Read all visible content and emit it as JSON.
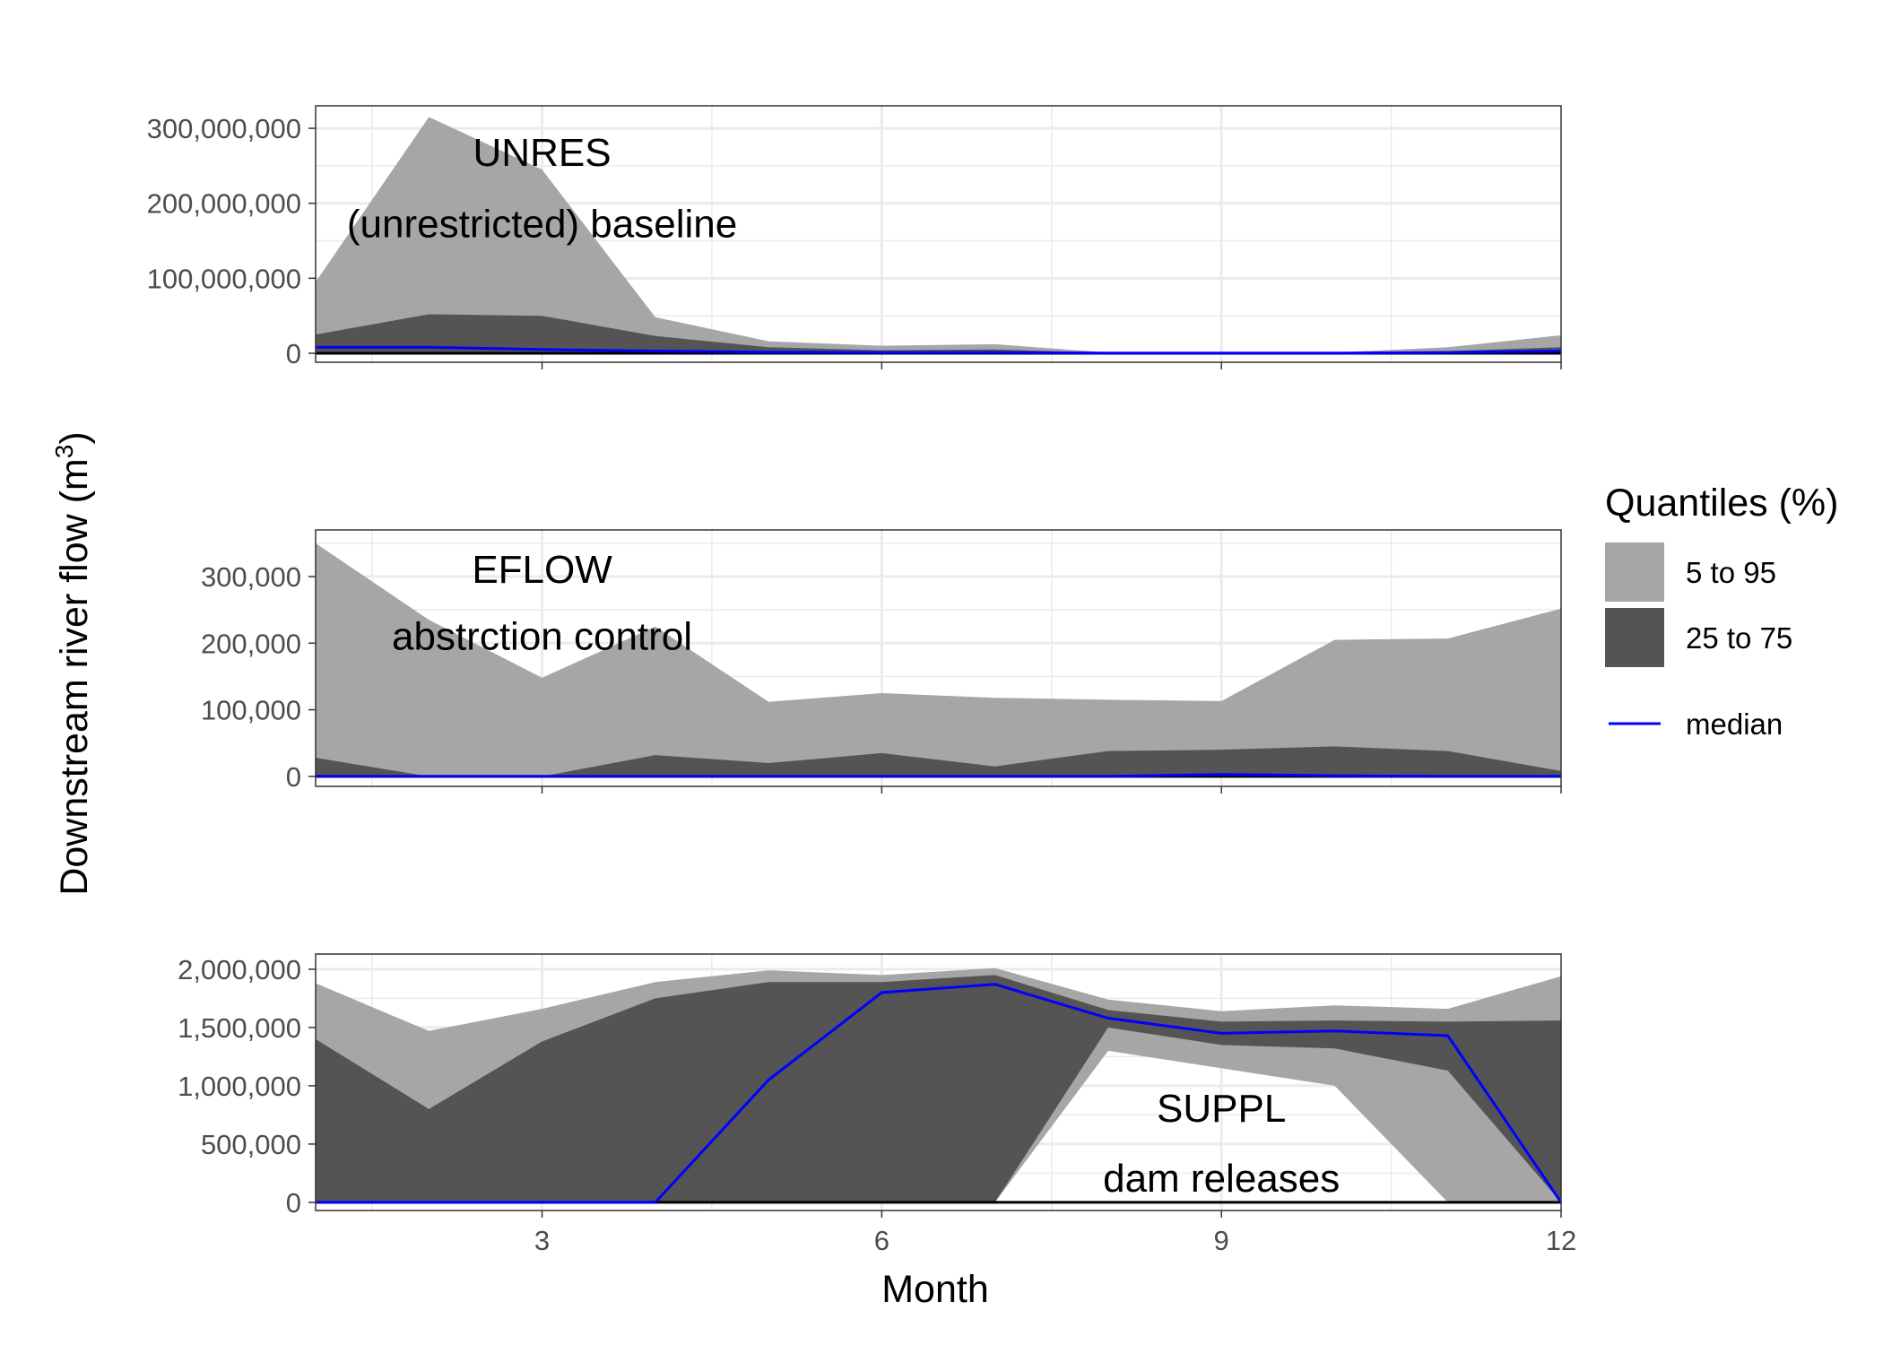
{
  "chart_data": {
    "type": "area",
    "xlabel": "Month",
    "ylabel": "Downstream river flow (m",
    "ylabel_sup": "3",
    "ylabel_close": ")",
    "x": [
      1,
      2,
      3,
      4,
      5,
      6,
      7,
      8,
      9,
      10,
      11,
      12
    ],
    "xlim": [
      1,
      12
    ],
    "xticks": [
      3,
      6,
      9,
      12
    ],
    "xtick_labels": [
      "3",
      "6",
      "9",
      "12"
    ],
    "grid": true,
    "legend": {
      "title": "Quantiles (%)",
      "placement": "right",
      "entries": [
        {
          "label": "5 to 95",
          "color": "#a6a6a6",
          "kind": "band"
        },
        {
          "label": "25 to 75",
          "color": "#545454",
          "kind": "band"
        },
        {
          "label": "median",
          "color": "#0000ff",
          "kind": "line"
        }
      ]
    },
    "colors": {
      "band_outer": "#a6a6a6",
      "band_inner": "#545454",
      "median": "#0000ff",
      "zero_line": "#000000"
    },
    "panels": [
      {
        "annotation_lines": [
          "UNRES",
          "(unrestricted) baseline"
        ],
        "annotation_x": 3,
        "annotation_y": [
          250000000,
          155000000
        ],
        "ylim": [
          -12000000,
          330000000
        ],
        "yticks": [
          0,
          100000000,
          200000000,
          300000000
        ],
        "ytick_labels": [
          "0",
          "100,000,000",
          "200,000,000",
          "300,000,000"
        ],
        "q05": [
          0,
          0,
          0,
          0,
          0,
          0,
          0,
          0,
          0,
          0,
          0,
          0
        ],
        "q95": [
          95000000,
          315000000,
          245000000,
          48000000,
          16000000,
          10000000,
          12000000,
          1000000,
          1000000,
          1000000,
          8000000,
          24000000
        ],
        "q25": [
          0,
          0,
          0,
          0,
          0,
          0,
          0,
          0,
          0,
          0,
          0,
          0
        ],
        "q75": [
          25000000,
          52000000,
          50000000,
          23000000,
          8000000,
          4000000,
          5000000,
          500000,
          500000,
          500000,
          3000000,
          8000000
        ],
        "median": [
          8000000,
          8000000,
          5000000,
          3000000,
          1500000,
          1000000,
          1000000,
          200000,
          200000,
          200000,
          1000000,
          3000000
        ]
      },
      {
        "annotation_lines": [
          "EFLOW",
          "abstrction control"
        ],
        "annotation_x": 3,
        "annotation_y": [
          285000000,
          190000
        ],
        "ylim": [
          -15000,
          370000
        ],
        "yticks": [
          0,
          100000,
          200000,
          300000
        ],
        "ytick_labels": [
          "0",
          "100,000",
          "200,000",
          "300,000"
        ],
        "q05": [
          0,
          0,
          0,
          0,
          0,
          0,
          0,
          0,
          0,
          0,
          0,
          0
        ],
        "q95": [
          350000,
          235000,
          148000,
          225000,
          112000,
          125000,
          118000,
          115000,
          113000,
          205000,
          207000,
          252000
        ],
        "q25": [
          0,
          0,
          0,
          0,
          0,
          0,
          0,
          0,
          0,
          0,
          0,
          0
        ],
        "q75": [
          28000,
          0,
          0,
          32000,
          20000,
          35000,
          15000,
          38000,
          40000,
          45000,
          38000,
          8000
        ],
        "median": [
          0,
          0,
          0,
          0,
          0,
          0,
          0,
          0,
          3000,
          1000,
          0,
          0
        ]
      },
      {
        "annotation_lines": [
          "SUPPL",
          "dam releases"
        ],
        "annotation_x": 9,
        "annotation_y": [
          690000,
          90000
        ],
        "ylim": [
          -70000,
          2130000
        ],
        "yticks": [
          0,
          500000,
          1000000,
          1500000,
          2000000
        ],
        "ytick_labels": [
          "0",
          "500,000",
          "1,000,000",
          "1,500,000",
          "2,000,000"
        ],
        "q05": [
          0,
          0,
          0,
          0,
          0,
          0,
          0,
          1300000,
          1150000,
          1000000,
          0,
          0
        ],
        "q95": [
          1880000,
          1470000,
          1660000,
          1890000,
          1990000,
          1950000,
          2010000,
          1740000,
          1640000,
          1690000,
          1660000,
          1940000
        ],
        "q25": [
          0,
          0,
          0,
          0,
          0,
          0,
          0,
          1500000,
          1350000,
          1320000,
          1130000,
          0
        ],
        "q75": [
          1400000,
          800000,
          1380000,
          1750000,
          1890000,
          1890000,
          1950000,
          1650000,
          1550000,
          1560000,
          1550000,
          1560000
        ],
        "median": [
          0,
          0,
          0,
          0,
          1050000,
          1800000,
          1870000,
          1580000,
          1450000,
          1470000,
          1430000,
          0
        ]
      }
    ]
  }
}
